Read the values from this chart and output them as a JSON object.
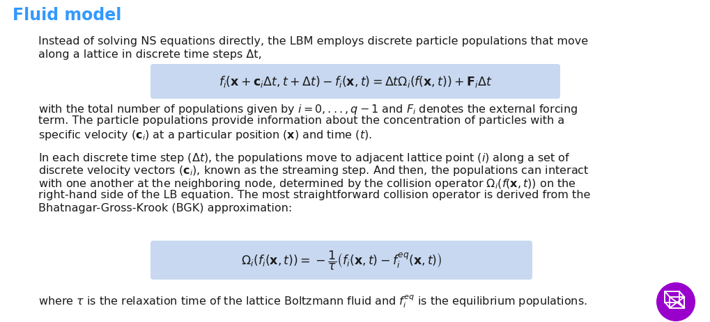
{
  "title": "Fluid model",
  "title_color": "#3399FF",
  "background_color": "#FFFFFF",
  "text_color": "#1a1a1a",
  "box_color": "#C8D8F0",
  "para1_line1": "Instead of solving NS equations directly, the LBM employs discrete particle populations that move",
  "para1_line2": "along a lattice in discrete time steps Δt,",
  "eq1": "$f_i(\\mathbf{x} + \\mathbf{c}_i\\Delta t, t + \\Delta t) - f_i(\\mathbf{x}, t) = \\Delta t\\Omega_i(f(\\mathbf{x}, t)) + \\mathbf{F}_i\\Delta t$",
  "para2_line1": "with the total number of populations given by $i = 0, ..., q - 1$ and $F_i$ denotes the external forcing",
  "para2_line2": "term. The particle populations provide information about the concentration of particles with a",
  "para2_line3": "specific velocity ($\\mathbf{c}_i$) at a particular position ($\\mathbf{x}$) and time ($t$).",
  "para3_line1": "In each discrete time step ($\\Delta t$), the populations move to adjacent lattice point ($i$) along a set of",
  "para3_line2": "discrete velocity vectors ($\\mathbf{c}_i$), known as the streaming step. And then, the populations can interact",
  "para3_line3": "with one another at the neighboring node, determined by the collision operator $\\Omega_i(f(\\mathbf{x}, t))$ on the",
  "para3_line4": "right-hand side of the LB equation. The most straightforward collision operator is derived from the",
  "para3_line5": "Bhatnagar-Gross-Krook (BGK) approximation:",
  "eq2": "$\\Omega_i(f_i(\\mathbf{x}, t)) = -\\dfrac{1}{\\tau}\\left(f_i(\\mathbf{x}, t) - f_i^{eq}(\\mathbf{x}, t)\\right)$",
  "para4": "where $\\tau$ is the relaxation time of the lattice Boltzmann fluid and $f_i^{eq}$ is the equilibrium populations.",
  "logo_color": "#9900CC",
  "font_size_title": 17,
  "font_size_body": 11.5,
  "font_size_eq": 12.5
}
